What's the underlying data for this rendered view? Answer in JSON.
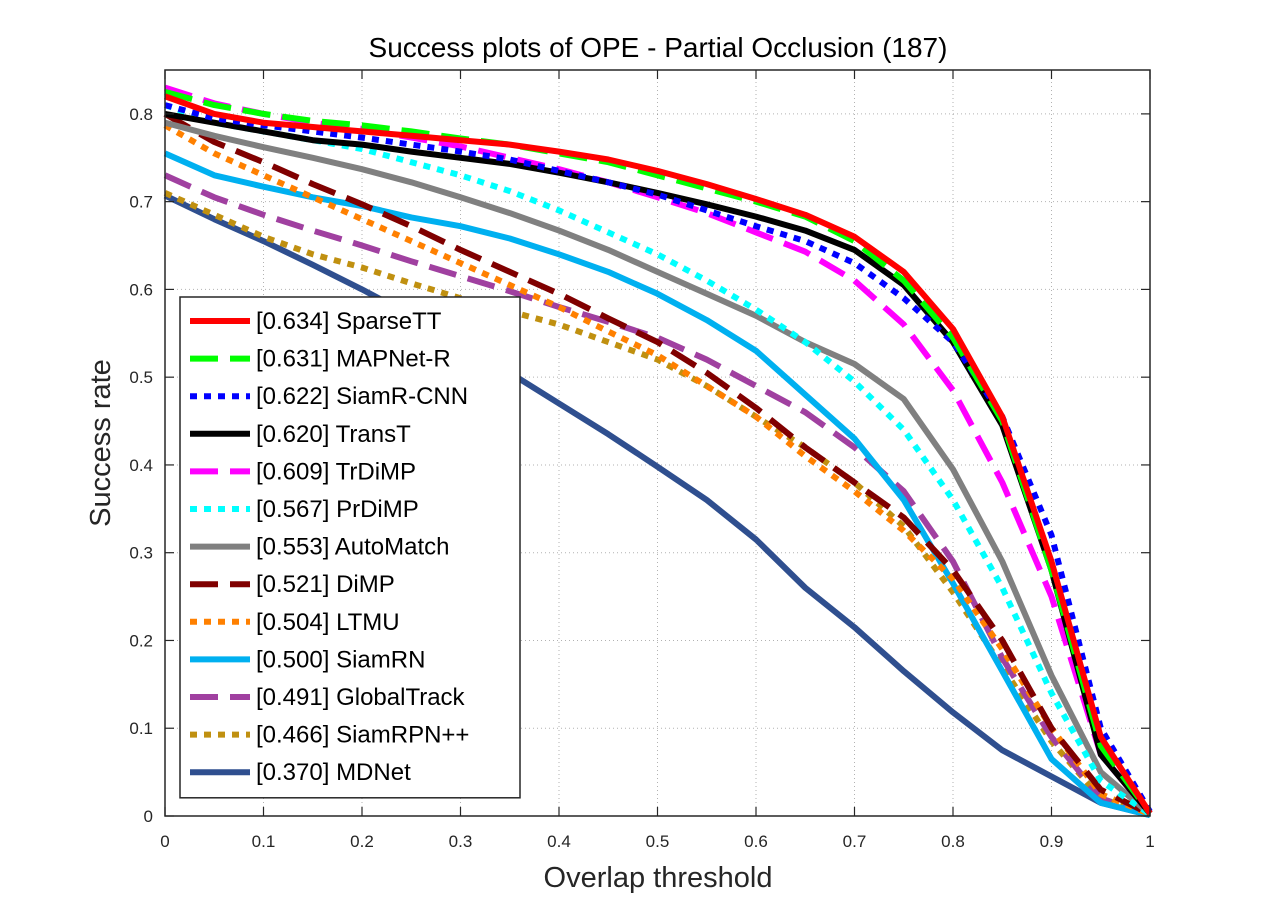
{
  "chart_data": {
    "type": "line",
    "title": "Success plots of OPE - Partial Occlusion (187)",
    "xlabel": "Overlap threshold",
    "ylabel": "Success rate",
    "xlim": [
      0,
      1
    ],
    "ylim": [
      0,
      0.85
    ],
    "xticks": [
      "0",
      "0.1",
      "0.2",
      "0.3",
      "0.4",
      "0.5",
      "0.6",
      "0.7",
      "0.8",
      "0.9",
      "1"
    ],
    "yticks": [
      "0",
      "0.1",
      "0.2",
      "0.3",
      "0.4",
      "0.5",
      "0.6",
      "0.7",
      "0.8"
    ],
    "grid": true,
    "legend_position": "bottom-left",
    "x": [
      0,
      0.05,
      0.1,
      0.15,
      0.2,
      0.25,
      0.3,
      0.35,
      0.4,
      0.45,
      0.5,
      0.55,
      0.6,
      0.65,
      0.7,
      0.75,
      0.8,
      0.85,
      0.9,
      0.95,
      1.0
    ],
    "series": [
      {
        "name": "[0.634] SparseTT",
        "color": "#ff0000",
        "style": "solid",
        "values": [
          0.82,
          0.8,
          0.79,
          0.785,
          0.78,
          0.775,
          0.77,
          0.765,
          0.757,
          0.748,
          0.735,
          0.72,
          0.703,
          0.685,
          0.66,
          0.62,
          0.555,
          0.455,
          0.29,
          0.09,
          0.003
        ]
      },
      {
        "name": "[0.631] MAPNet-R",
        "color": "#00ff00",
        "style": "dash",
        "values": [
          0.825,
          0.81,
          0.8,
          0.792,
          0.787,
          0.78,
          0.772,
          0.765,
          0.755,
          0.745,
          0.73,
          0.715,
          0.7,
          0.683,
          0.655,
          0.61,
          0.545,
          0.45,
          0.28,
          0.08,
          0.003
        ]
      },
      {
        "name": "[0.622] SiamR-CNN",
        "color": "#0000ff",
        "style": "dot",
        "values": [
          0.81,
          0.795,
          0.787,
          0.78,
          0.773,
          0.765,
          0.757,
          0.748,
          0.735,
          0.722,
          0.708,
          0.69,
          0.672,
          0.655,
          0.63,
          0.59,
          0.54,
          0.455,
          0.32,
          0.1,
          0.005
        ]
      },
      {
        "name": "[0.620] TransT",
        "color": "#000000",
        "style": "solid",
        "values": [
          0.8,
          0.79,
          0.78,
          0.77,
          0.765,
          0.757,
          0.75,
          0.743,
          0.733,
          0.722,
          0.71,
          0.697,
          0.683,
          0.667,
          0.645,
          0.605,
          0.54,
          0.445,
          0.28,
          0.07,
          0.003
        ]
      },
      {
        "name": "[0.609] TrDiMP",
        "color": "#ff00ff",
        "style": "dash",
        "values": [
          0.83,
          0.812,
          0.8,
          0.79,
          0.783,
          0.773,
          0.763,
          0.75,
          0.737,
          0.722,
          0.705,
          0.687,
          0.665,
          0.643,
          0.61,
          0.56,
          0.485,
          0.38,
          0.25,
          0.07,
          0.003
        ]
      },
      {
        "name": "[0.567] PrDiMP",
        "color": "#00ffff",
        "style": "dot",
        "values": [
          0.81,
          0.79,
          0.78,
          0.77,
          0.76,
          0.745,
          0.73,
          0.712,
          0.69,
          0.665,
          0.64,
          0.61,
          0.577,
          0.54,
          0.495,
          0.44,
          0.36,
          0.26,
          0.14,
          0.04,
          0.002
        ]
      },
      {
        "name": "[0.553] AutoMatch",
        "color": "#808080",
        "style": "solid",
        "values": [
          0.79,
          0.775,
          0.762,
          0.75,
          0.737,
          0.722,
          0.705,
          0.687,
          0.667,
          0.645,
          0.62,
          0.595,
          0.57,
          0.54,
          0.515,
          0.475,
          0.395,
          0.29,
          0.16,
          0.05,
          0.002
        ]
      },
      {
        "name": "[0.521] DiMP",
        "color": "#800000",
        "style": "dash",
        "values": [
          0.8,
          0.768,
          0.745,
          0.72,
          0.697,
          0.672,
          0.645,
          0.62,
          0.595,
          0.567,
          0.54,
          0.505,
          0.465,
          0.42,
          0.38,
          0.34,
          0.28,
          0.2,
          0.1,
          0.03,
          0.002
        ]
      },
      {
        "name": "[0.504] LTMU",
        "color": "#ff8000",
        "style": "dot",
        "values": [
          0.787,
          0.755,
          0.73,
          0.705,
          0.68,
          0.655,
          0.63,
          0.605,
          0.58,
          0.552,
          0.525,
          0.49,
          0.455,
          0.41,
          0.37,
          0.325,
          0.27,
          0.19,
          0.1,
          0.025,
          0.002
        ]
      },
      {
        "name": "[0.500] SiamRN",
        "color": "#00b0f0",
        "style": "solid",
        "values": [
          0.755,
          0.73,
          0.717,
          0.705,
          0.695,
          0.682,
          0.672,
          0.658,
          0.64,
          0.62,
          0.595,
          0.565,
          0.53,
          0.48,
          0.43,
          0.36,
          0.265,
          0.165,
          0.065,
          0.015,
          0.001
        ]
      },
      {
        "name": "[0.491] GlobalTrack",
        "color": "#a040a0",
        "style": "dash",
        "values": [
          0.73,
          0.705,
          0.685,
          0.667,
          0.65,
          0.632,
          0.615,
          0.598,
          0.58,
          0.563,
          0.545,
          0.52,
          0.49,
          0.46,
          0.42,
          0.37,
          0.29,
          0.18,
          0.09,
          0.02,
          0.001
        ]
      },
      {
        "name": "[0.466] SiamRPN++",
        "color": "#c09010",
        "style": "dot",
        "values": [
          0.71,
          0.685,
          0.66,
          0.64,
          0.625,
          0.607,
          0.59,
          0.575,
          0.56,
          0.54,
          0.52,
          0.49,
          0.455,
          0.42,
          0.38,
          0.33,
          0.255,
          0.17,
          0.085,
          0.02,
          0.001
        ]
      },
      {
        "name": "[0.370] MDNet",
        "color": "#2f4f8f",
        "style": "solid",
        "values": [
          0.707,
          0.68,
          0.655,
          0.628,
          0.6,
          0.57,
          0.54,
          0.505,
          0.47,
          0.435,
          0.398,
          0.36,
          0.315,
          0.26,
          0.215,
          0.165,
          0.118,
          0.075,
          0.045,
          0.015,
          0.001
        ]
      }
    ]
  }
}
